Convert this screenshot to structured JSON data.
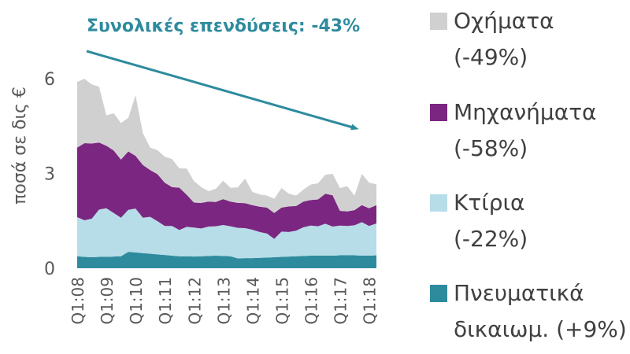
{
  "chart_data": {
    "type": "area",
    "stacked": true,
    "title": "Συνολικές επενδύσεις: -43%",
    "ylabel": "ποσά σε δις €",
    "xlabel": "",
    "ylim": [
      0,
      7
    ],
    "yticks": [
      0,
      3,
      6
    ],
    "x_tick_labels": [
      "Q1:08",
      "Q1:09",
      "Q1:10",
      "Q1:11",
      "Q1:12",
      "Q1:13",
      "Q1:14",
      "Q1:15",
      "Q1:16",
      "Q1:17",
      "Q1:18"
    ],
    "x": [
      "Q1:08",
      "Q2:08",
      "Q3:08",
      "Q4:08",
      "Q1:09",
      "Q2:09",
      "Q3:09",
      "Q4:09",
      "Q1:10",
      "Q2:10",
      "Q3:10",
      "Q4:10",
      "Q1:11",
      "Q2:11",
      "Q3:11",
      "Q4:11",
      "Q1:12",
      "Q2:12",
      "Q3:12",
      "Q4:12",
      "Q1:13",
      "Q2:13",
      "Q3:13",
      "Q4:13",
      "Q1:14",
      "Q2:14",
      "Q3:14",
      "Q4:14",
      "Q1:15",
      "Q2:15",
      "Q3:15",
      "Q4:15",
      "Q1:16",
      "Q2:16",
      "Q3:16",
      "Q4:16",
      "Q1:17",
      "Q2:17",
      "Q3:17",
      "Q4:17",
      "Q1:18",
      "Q2:18"
    ],
    "series": [
      {
        "name": "Πνευματικά δικαιωμ.",
        "change": "(+9%)",
        "color": "#2e8b9e",
        "values": [
          0.38,
          0.36,
          0.35,
          0.36,
          0.36,
          0.37,
          0.38,
          0.52,
          0.5,
          0.48,
          0.46,
          0.44,
          0.42,
          0.4,
          0.38,
          0.38,
          0.37,
          0.38,
          0.39,
          0.4,
          0.39,
          0.38,
          0.31,
          0.32,
          0.32,
          0.33,
          0.34,
          0.35,
          0.36,
          0.37,
          0.38,
          0.39,
          0.4,
          0.4,
          0.4,
          0.4,
          0.41,
          0.41,
          0.41,
          0.4,
          0.4,
          0.41
        ]
      },
      {
        "name": "Κτίρια",
        "change": "(-22%)",
        "color": "#b6dde8",
        "values": [
          1.24,
          1.16,
          1.22,
          1.5,
          1.54,
          1.38,
          1.22,
          1.33,
          1.39,
          1.12,
          1.17,
          1.05,
          0.92,
          0.94,
          0.83,
          0.93,
          0.92,
          0.88,
          0.93,
          0.93,
          0.98,
          0.95,
          0.97,
          0.95,
          0.9,
          0.82,
          0.76,
          0.58,
          0.8,
          0.78,
          0.81,
          0.91,
          0.95,
          0.93,
          1.01,
          0.92,
          0.94,
          0.93,
          0.95,
          1.06,
          0.94,
          1.01
        ]
      },
      {
        "name": "Μηχανήματα",
        "change": "(-58%)",
        "color": "#7b2681",
        "values": [
          2.2,
          2.44,
          2.38,
          2.12,
          1.98,
          1.98,
          1.84,
          1.85,
          1.67,
          1.67,
          1.48,
          1.49,
          1.37,
          1.23,
          1.34,
          1.02,
          0.79,
          0.81,
          0.79,
          0.77,
          0.82,
          0.78,
          0.79,
          0.79,
          0.78,
          0.8,
          0.82,
          0.82,
          0.76,
          0.81,
          0.78,
          0.81,
          0.81,
          0.85,
          0.95,
          0.99,
          0.47,
          0.46,
          0.48,
          0.54,
          0.56,
          0.58
        ]
      },
      {
        "name": "Οχήματα",
        "change": "(-49%)",
        "color": "#d0d0d0",
        "values": [
          2.08,
          2.04,
          1.87,
          1.77,
          0.96,
          1.18,
          1.16,
          1.06,
          1.92,
          1.01,
          0.71,
          0.76,
          0.82,
          0.89,
          0.61,
          0.83,
          0.68,
          0.5,
          0.33,
          0.42,
          0.58,
          0.44,
          0.49,
          0.78,
          0.42,
          0.39,
          0.38,
          0.45,
          0.62,
          0.4,
          0.33,
          0.38,
          0.49,
          0.51,
          0.6,
          0.68,
          0.72,
          0.8,
          0.46,
          0.99,
          0.81,
          0.66
        ]
      }
    ],
    "annotation": {
      "text": "Συνολικές επενδύσεις: -43%",
      "color": "#2e8b9e",
      "arrow": "down-right"
    },
    "legend_position": "right",
    "grid": false
  },
  "legend_items": [
    {
      "name": "Οχήματα",
      "change": "(-49%)",
      "color": "#d0d0d0"
    },
    {
      "name": "Μηχανήματα",
      "change": "(-58%)",
      "color": "#7b2681"
    },
    {
      "name": "Κτίρια",
      "change": "(-22%)",
      "color": "#b6dde8"
    },
    {
      "name": "Πνευματικά",
      "change": "δικαιωμ. (+9%)",
      "color": "#2e8b9e"
    }
  ]
}
